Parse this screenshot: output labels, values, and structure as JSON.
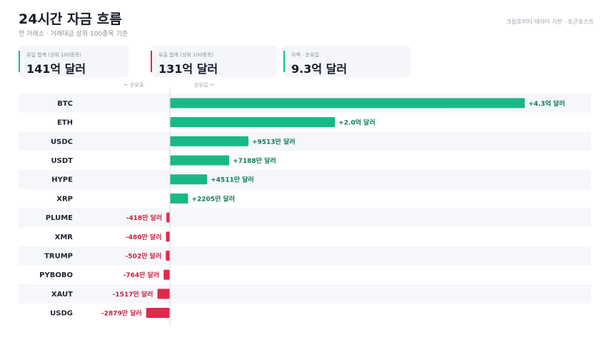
{
  "header": {
    "title": "24시간 자금 흐름",
    "subtitle": "전 거래소 · 거래대금 상위 100종목 기준",
    "source": "크립토미터 데이터 기반 · 토큰포스트"
  },
  "summary": [
    {
      "label": "유입 합계 (상위 100종목)",
      "value": "141억 달러",
      "color": "#19b986"
    },
    {
      "label": "유출 합계 (상위 100종목)",
      "value": "131억 달러",
      "color": "#e0294b"
    },
    {
      "label": "차액 · 순유입",
      "value": "9.3억 달러",
      "color": "#19b986"
    }
  ],
  "axis_labels": {
    "left": "← 순유출",
    "right": "순유입 →"
  },
  "colors": {
    "inflow": "#19b986",
    "outflow": "#e0294b",
    "inflow_text": "#0f7a55",
    "outflow_text": "#c8203f"
  },
  "chart_data": {
    "type": "bar",
    "orientation": "horizontal",
    "unit": "만 달러",
    "categories": [
      "BTC",
      "ETH",
      "USDC",
      "USDT",
      "HYPE",
      "XRP",
      "PLUME",
      "XMR",
      "TRUMP",
      "PYBOBO",
      "XAUT",
      "USDG"
    ],
    "values": [
      43000,
      20000,
      9513,
      7188,
      4511,
      2205,
      -418,
      -480,
      -502,
      -764,
      -1517,
      -2879
    ],
    "labels": [
      "+4.3억 달러",
      "+2.0억 달러",
      "+9513만 달러",
      "+7188만 달러",
      "+4511만 달러",
      "+2205만 달러",
      "-418만 달러",
      "-480만 달러",
      "-502만 달러",
      "-764만 달러",
      "-1517만 달러",
      "-2879만 달러"
    ]
  }
}
